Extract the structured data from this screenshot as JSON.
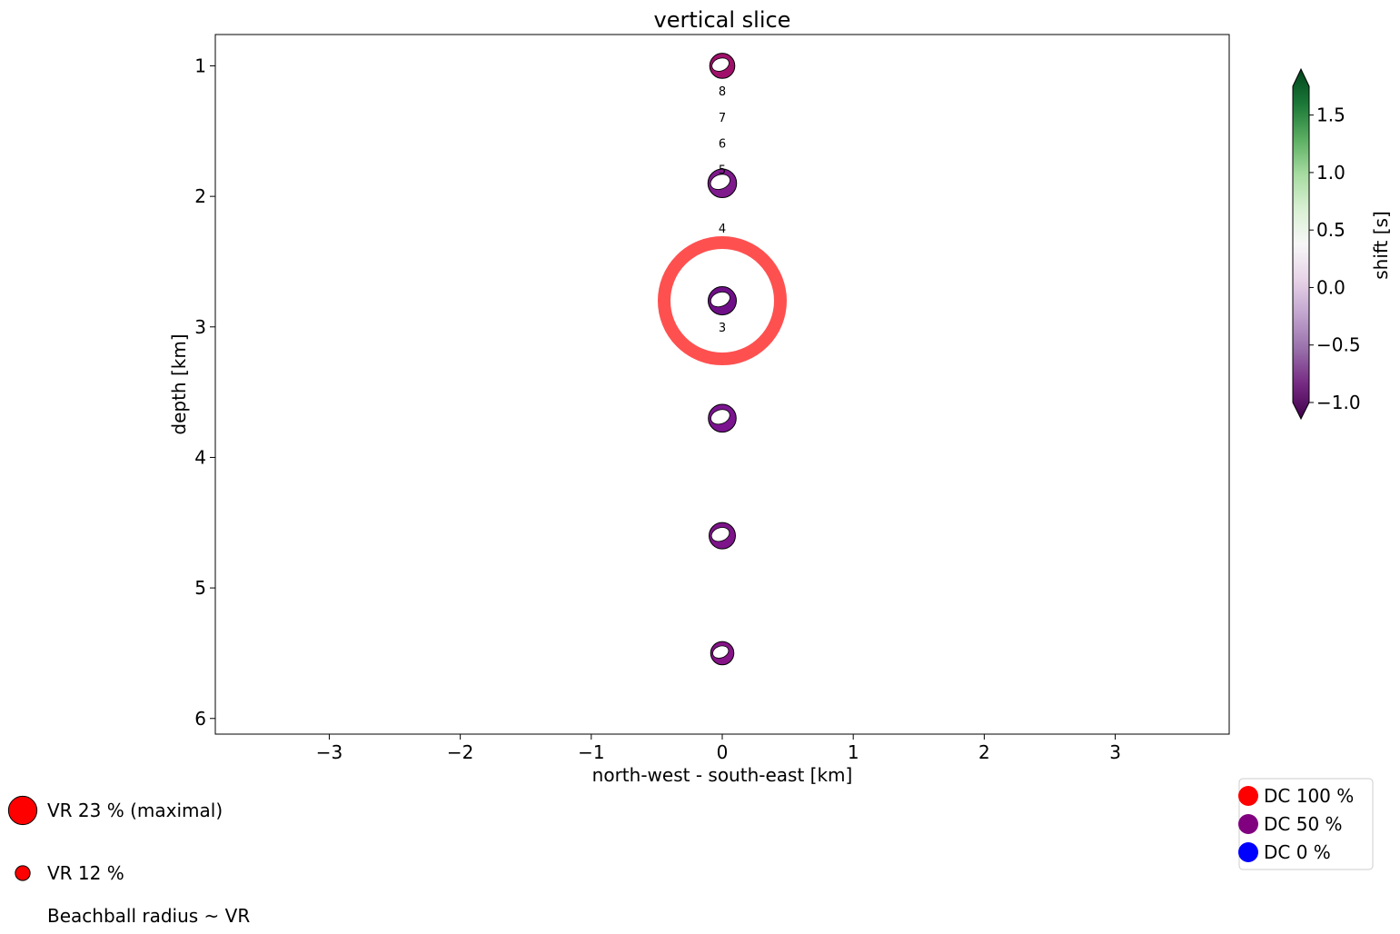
{
  "chart_data": {
    "type": "scatter",
    "title": "vertical slice",
    "xlabel": "north-west - south-east [km]",
    "ylabel": "depth [km]",
    "xlim": [
      -3.87,
      3.87
    ],
    "ylim": [
      6.12,
      0.76
    ],
    "y_inverted": true,
    "grid": false,
    "xticks": [
      -3,
      -2,
      -1,
      0,
      1,
      2,
      3
    ],
    "xtick_labels": [
      "−3",
      "−2",
      "−1",
      "0",
      "1",
      "2",
      "3"
    ],
    "yticks": [
      1,
      2,
      3,
      4,
      5,
      6
    ],
    "ytick_labels": [
      "1",
      "2",
      "3",
      "4",
      "5",
      "6"
    ],
    "beachballs": [
      {
        "x": 0,
        "depth": 1.0,
        "vr": 12.0,
        "dc": 50,
        "shift": -0.75,
        "color": "#a0106a"
      },
      {
        "x": 0,
        "depth": 1.9,
        "vr": 13.7,
        "dc": 50,
        "shift": -0.85,
        "color": "#7e1a8c"
      },
      {
        "x": 0,
        "depth": 2.8,
        "vr": 13.5,
        "dc": 50,
        "shift": -0.9,
        "color": "#6f0f87"
      },
      {
        "x": 0,
        "depth": 3.7,
        "vr": 13.3,
        "dc": 50,
        "shift": -0.85,
        "color": "#7a148f"
      },
      {
        "x": 0,
        "depth": 4.6,
        "vr": 12.6,
        "dc": 50,
        "shift": -0.8,
        "color": "#7d1489"
      },
      {
        "x": 0,
        "depth": 5.5,
        "vr": 11.1,
        "dc": 50,
        "shift": -0.75,
        "color": "#861387"
      }
    ],
    "highlight": {
      "x": 0,
      "depth": 2.8,
      "color": "#ff5050"
    },
    "point_labels": [
      {
        "text": "8",
        "x": 0,
        "depth": 1.2
      },
      {
        "text": "7",
        "x": 0,
        "depth": 1.4
      },
      {
        "text": "6",
        "x": 0,
        "depth": 1.6
      },
      {
        "text": "5",
        "x": 0,
        "depth": 1.8
      },
      {
        "text": "4",
        "x": 0,
        "depth": 2.25
      },
      {
        "text": "3",
        "x": 0,
        "depth": 3.01
      }
    ],
    "colorbar": {
      "label": "shift [s]",
      "min": -1.0,
      "max": 1.75,
      "ticks": [
        1.5,
        1.0,
        0.5,
        0.0,
        -0.5,
        -1.0
      ],
      "tick_labels": [
        "1.5",
        "1.0",
        "0.5",
        "0.0",
        "−0.5",
        "−1.0"
      ],
      "colormap": [
        "#40004b",
        "#762a83",
        "#9970ab",
        "#c2a5cf",
        "#e7d4e8",
        "#f7f7f7",
        "#d9f0d3",
        "#a6dba0",
        "#5aae61",
        "#1b7837",
        "#00441b"
      ]
    },
    "legend_dc": {
      "placement": "bottom-right",
      "entries": [
        {
          "label": "DC 100 %",
          "color": "#ff0000"
        },
        {
          "label": "DC 50 %",
          "color": "#800080"
        },
        {
          "label": "DC 0 %",
          "color": "#0000ff"
        }
      ]
    },
    "legend_vr": {
      "placement": "bottom-left",
      "entries": [
        {
          "label": "VR 23 % (maximal)",
          "vr": 23,
          "color": "#ff0000"
        },
        {
          "label": "VR 12 %",
          "vr": 12,
          "color": "#ff0000"
        }
      ],
      "note": "Beachball radius ~ VR"
    }
  }
}
